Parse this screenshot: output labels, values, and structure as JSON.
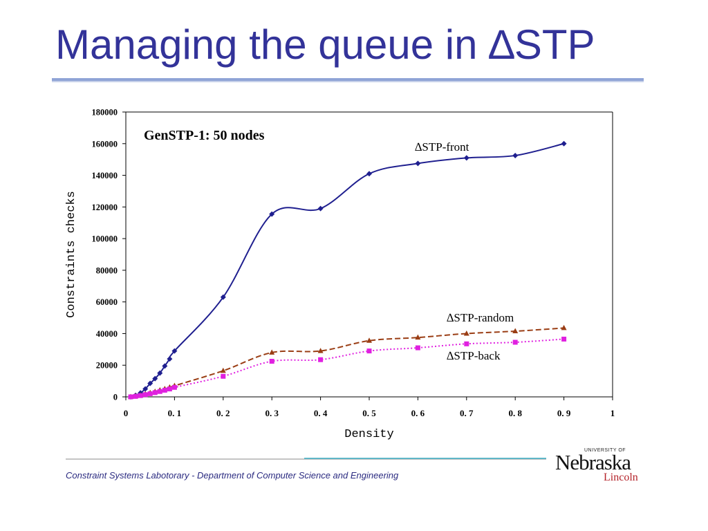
{
  "slide": {
    "title": "Managing the queue in ∆STP",
    "footer": "Constraint Systems Labotorary - Department of Computer Science and Engineering",
    "logo": {
      "univ": "UNIVERSITY OF",
      "main": "Nebraska",
      "sub": "Lincoln"
    }
  },
  "chart_data": {
    "type": "line",
    "title": "GenSTP-1: 50 nodes",
    "xlabel": "Density",
    "ylabel": "Constraints checks",
    "xlim": [
      0,
      1
    ],
    "ylim": [
      0,
      180000
    ],
    "xticks": [
      0,
      0.1,
      0.2,
      0.3,
      0.4,
      0.5,
      0.6,
      0.7,
      0.8,
      0.9,
      1
    ],
    "xtick_labels": [
      "0",
      "0. 1",
      "0. 2",
      "0. 3",
      "0. 4",
      "0. 5",
      "0. 6",
      "0. 7",
      "0. 8",
      "0. 9",
      "1"
    ],
    "yticks": [
      0,
      20000,
      40000,
      60000,
      80000,
      100000,
      120000,
      140000,
      160000,
      180000
    ],
    "ytick_labels": [
      "0",
      "20000",
      "40000",
      "60000",
      "80000",
      "100000",
      "120000",
      "140000",
      "160000",
      "180000"
    ],
    "grid": false,
    "series": [
      {
        "name": "∆STP-front",
        "color": "#1f1f8f",
        "marker": "diamond",
        "dash": "solid",
        "x": [
          0.01,
          0.02,
          0.03,
          0.04,
          0.05,
          0.06,
          0.07,
          0.08,
          0.09,
          0.1,
          0.2,
          0.3,
          0.4,
          0.5,
          0.6,
          0.7,
          0.8,
          0.9
        ],
        "y": [
          0,
          1000,
          2500,
          5000,
          8500,
          11500,
          15000,
          19500,
          24000,
          29000,
          63000,
          115500,
          119000,
          141000,
          147500,
          151000,
          152500,
          160000
        ]
      },
      {
        "name": "∆STP-random",
        "color": "#9a3d14",
        "marker": "triangle",
        "dash": "dashed",
        "x": [
          0.01,
          0.02,
          0.03,
          0.04,
          0.05,
          0.06,
          0.07,
          0.08,
          0.09,
          0.1,
          0.2,
          0.3,
          0.4,
          0.5,
          0.6,
          0.7,
          0.8,
          0.9
        ],
        "y": [
          0,
          500,
          1000,
          1800,
          2500,
          3300,
          4200,
          5000,
          6000,
          7000,
          16500,
          28000,
          29000,
          35500,
          37500,
          40000,
          41500,
          43500
        ]
      },
      {
        "name": "∆STP-back",
        "color": "#e020e0",
        "marker": "square",
        "dash": "dotted",
        "x": [
          0.01,
          0.02,
          0.03,
          0.04,
          0.05,
          0.06,
          0.07,
          0.08,
          0.09,
          0.1,
          0.2,
          0.3,
          0.4,
          0.5,
          0.6,
          0.7,
          0.8,
          0.9
        ],
        "y": [
          0,
          300,
          800,
          1400,
          2000,
          2700,
          3400,
          4200,
          5000,
          6000,
          13000,
          22500,
          23500,
          29000,
          31000,
          33500,
          34500,
          36500
        ]
      }
    ]
  }
}
